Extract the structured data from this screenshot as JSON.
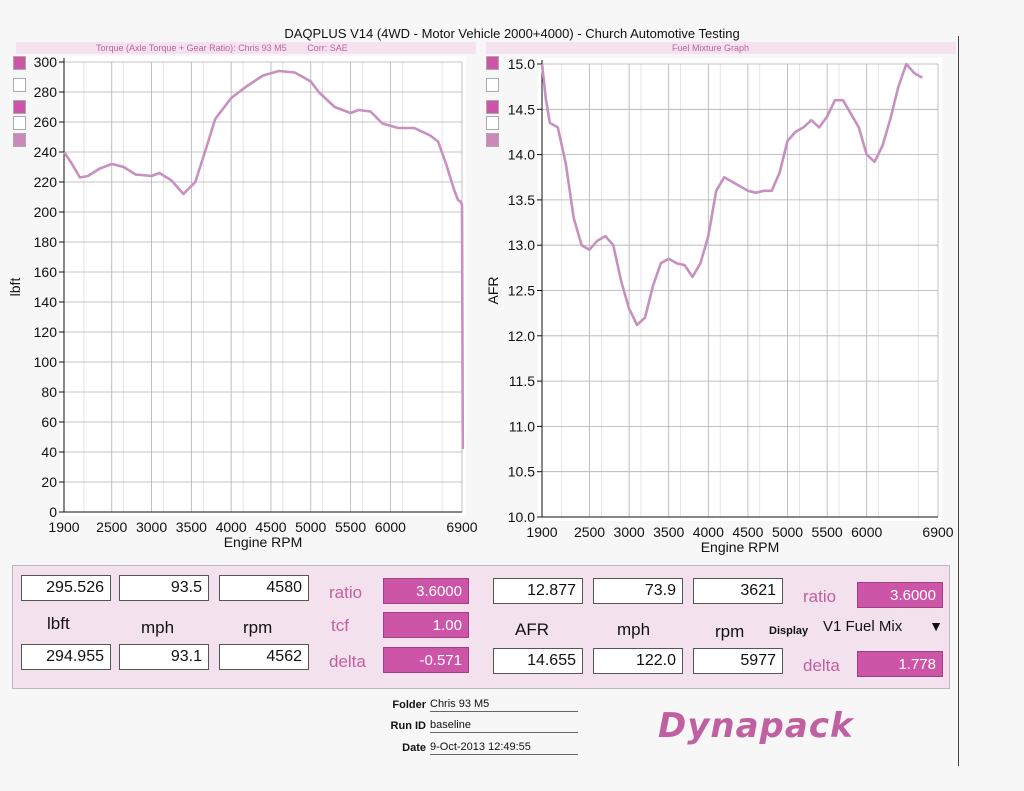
{
  "header": {
    "title": "DAQPLUS V14 (4WD - Motor Vehicle 2000+4000) - Church Automotive Testing",
    "left_subtitle": "Torque (Axle Torque + Gear Ratio): Chris 93 M5",
    "left_corr": "Corr: SAE",
    "right_subtitle": "Fuel Mixture Graph"
  },
  "chart_data": [
    {
      "type": "line",
      "title": "Torque (Axle Torque + Gear Ratio): Chris 93 M5",
      "xlabel": "Engine RPM",
      "ylabel": "lbft",
      "xlim": [
        1900,
        6900
      ],
      "ylim": [
        0,
        300
      ],
      "xticks": [
        "1900",
        "2500",
        "3000",
        "3500",
        "4000",
        "4500",
        "5000",
        "5500",
        "6000",
        "6900"
      ],
      "yticks": [
        "0",
        "20",
        "40",
        "60",
        "80",
        "100",
        "120",
        "140",
        "160",
        "180",
        "200",
        "220",
        "240",
        "260",
        "280",
        "300"
      ],
      "grid": true,
      "color": "#c890c0",
      "series": [
        {
          "x": [
            1900,
            2000,
            2100,
            2200,
            2350,
            2500,
            2650,
            2800,
            3000,
            3100,
            3250,
            3400,
            3550,
            3700,
            3800,
            4000,
            4200,
            4400,
            4600,
            4800,
            5000,
            5100,
            5300,
            5500,
            5600,
            5750,
            5900,
            6100,
            6300,
            6500,
            6600,
            6700,
            6800,
            6850,
            6880,
            6900,
            6910
          ],
          "y": [
            240,
            232,
            223,
            224,
            229,
            232,
            230,
            225,
            224,
            226,
            221,
            212,
            220,
            245,
            262,
            276,
            284,
            291,
            294,
            293,
            287,
            280,
            270,
            266,
            268,
            267,
            259,
            256,
            256,
            251,
            247,
            232,
            215,
            208,
            207,
            205,
            42
          ]
        }
      ]
    },
    {
      "type": "line",
      "title": "Fuel Mixture Graph",
      "xlabel": "Engine RPM",
      "ylabel": "AFR",
      "xlim": [
        1900,
        6900
      ],
      "ylim": [
        10.0,
        15.0
      ],
      "xticks": [
        "1900",
        "2500",
        "3000",
        "3500",
        "4000",
        "4500",
        "5000",
        "5500",
        "6000",
        "6900"
      ],
      "yticks": [
        "10.0",
        "10.5",
        "11.0",
        "11.5",
        "12.0",
        "12.5",
        "13.0",
        "13.5",
        "14.0",
        "14.5",
        "15.0"
      ],
      "grid": true,
      "color": "#c890c0",
      "series": [
        {
          "x": [
            1900,
            1950,
            2000,
            2100,
            2200,
            2300,
            2400,
            2500,
            2600,
            2700,
            2800,
            2900,
            3000,
            3100,
            3200,
            3300,
            3400,
            3500,
            3600,
            3700,
            3800,
            3900,
            4000,
            4100,
            4200,
            4300,
            4400,
            4500,
            4600,
            4700,
            4800,
            4900,
            5000,
            5100,
            5200,
            5300,
            5400,
            5500,
            5600,
            5700,
            5800,
            5900,
            6000,
            6100,
            6200,
            6300,
            6400,
            6500,
            6600,
            6700
          ],
          "y": [
            15.0,
            14.6,
            14.35,
            14.3,
            13.9,
            13.3,
            13.0,
            12.95,
            13.05,
            13.1,
            13.0,
            12.6,
            12.3,
            12.12,
            12.2,
            12.55,
            12.8,
            12.85,
            12.8,
            12.78,
            12.65,
            12.8,
            13.1,
            13.6,
            13.75,
            13.7,
            13.65,
            13.6,
            13.58,
            13.6,
            13.6,
            13.8,
            14.15,
            14.25,
            14.3,
            14.38,
            14.3,
            14.42,
            14.6,
            14.6,
            14.45,
            14.3,
            14.0,
            13.92,
            14.1,
            14.4,
            14.75,
            15.0,
            14.9,
            14.85
          ]
        }
      ]
    }
  ],
  "legend_colors": [
    "#cc55a8",
    "#ffffff",
    "#cc55a8",
    "#ffffff",
    "#cc88bb"
  ],
  "readout": {
    "left": {
      "row1": {
        "value1": "295.526",
        "value2": "93.5",
        "value3": "4580"
      },
      "row2": {
        "label1": "lbft",
        "label2": "mph",
        "label3": "rpm"
      },
      "row3": {
        "value1": "294.955",
        "value2": "93.1",
        "value3": "4562"
      },
      "ratio_label": "ratio",
      "ratio_value": "3.6000",
      "tcf_label": "tcf",
      "tcf_value": "1.00",
      "delta_label": "delta",
      "delta_value": "-0.571"
    },
    "right": {
      "row1": {
        "value1": "12.877",
        "value2": "73.9",
        "value3": "3621"
      },
      "row2": {
        "label1": "AFR",
        "label2": "mph",
        "label3": "rpm"
      },
      "row3": {
        "value1": "14.655",
        "value2": "122.0",
        "value3": "5977"
      },
      "ratio_label": "ratio",
      "ratio_value": "3.6000",
      "display_label": "Display",
      "display_value": "V1 Fuel Mix",
      "delta_label": "delta",
      "delta_value": "1.778"
    }
  },
  "meta": {
    "folder_label": "Folder",
    "folder_value": "Chris 93 M5",
    "runid_label": "Run ID",
    "runid_value": "baseline",
    "date_label": "Date",
    "date_value": "9-Oct-2013 12:49:55"
  },
  "logo": {
    "text": "Dynapack"
  }
}
